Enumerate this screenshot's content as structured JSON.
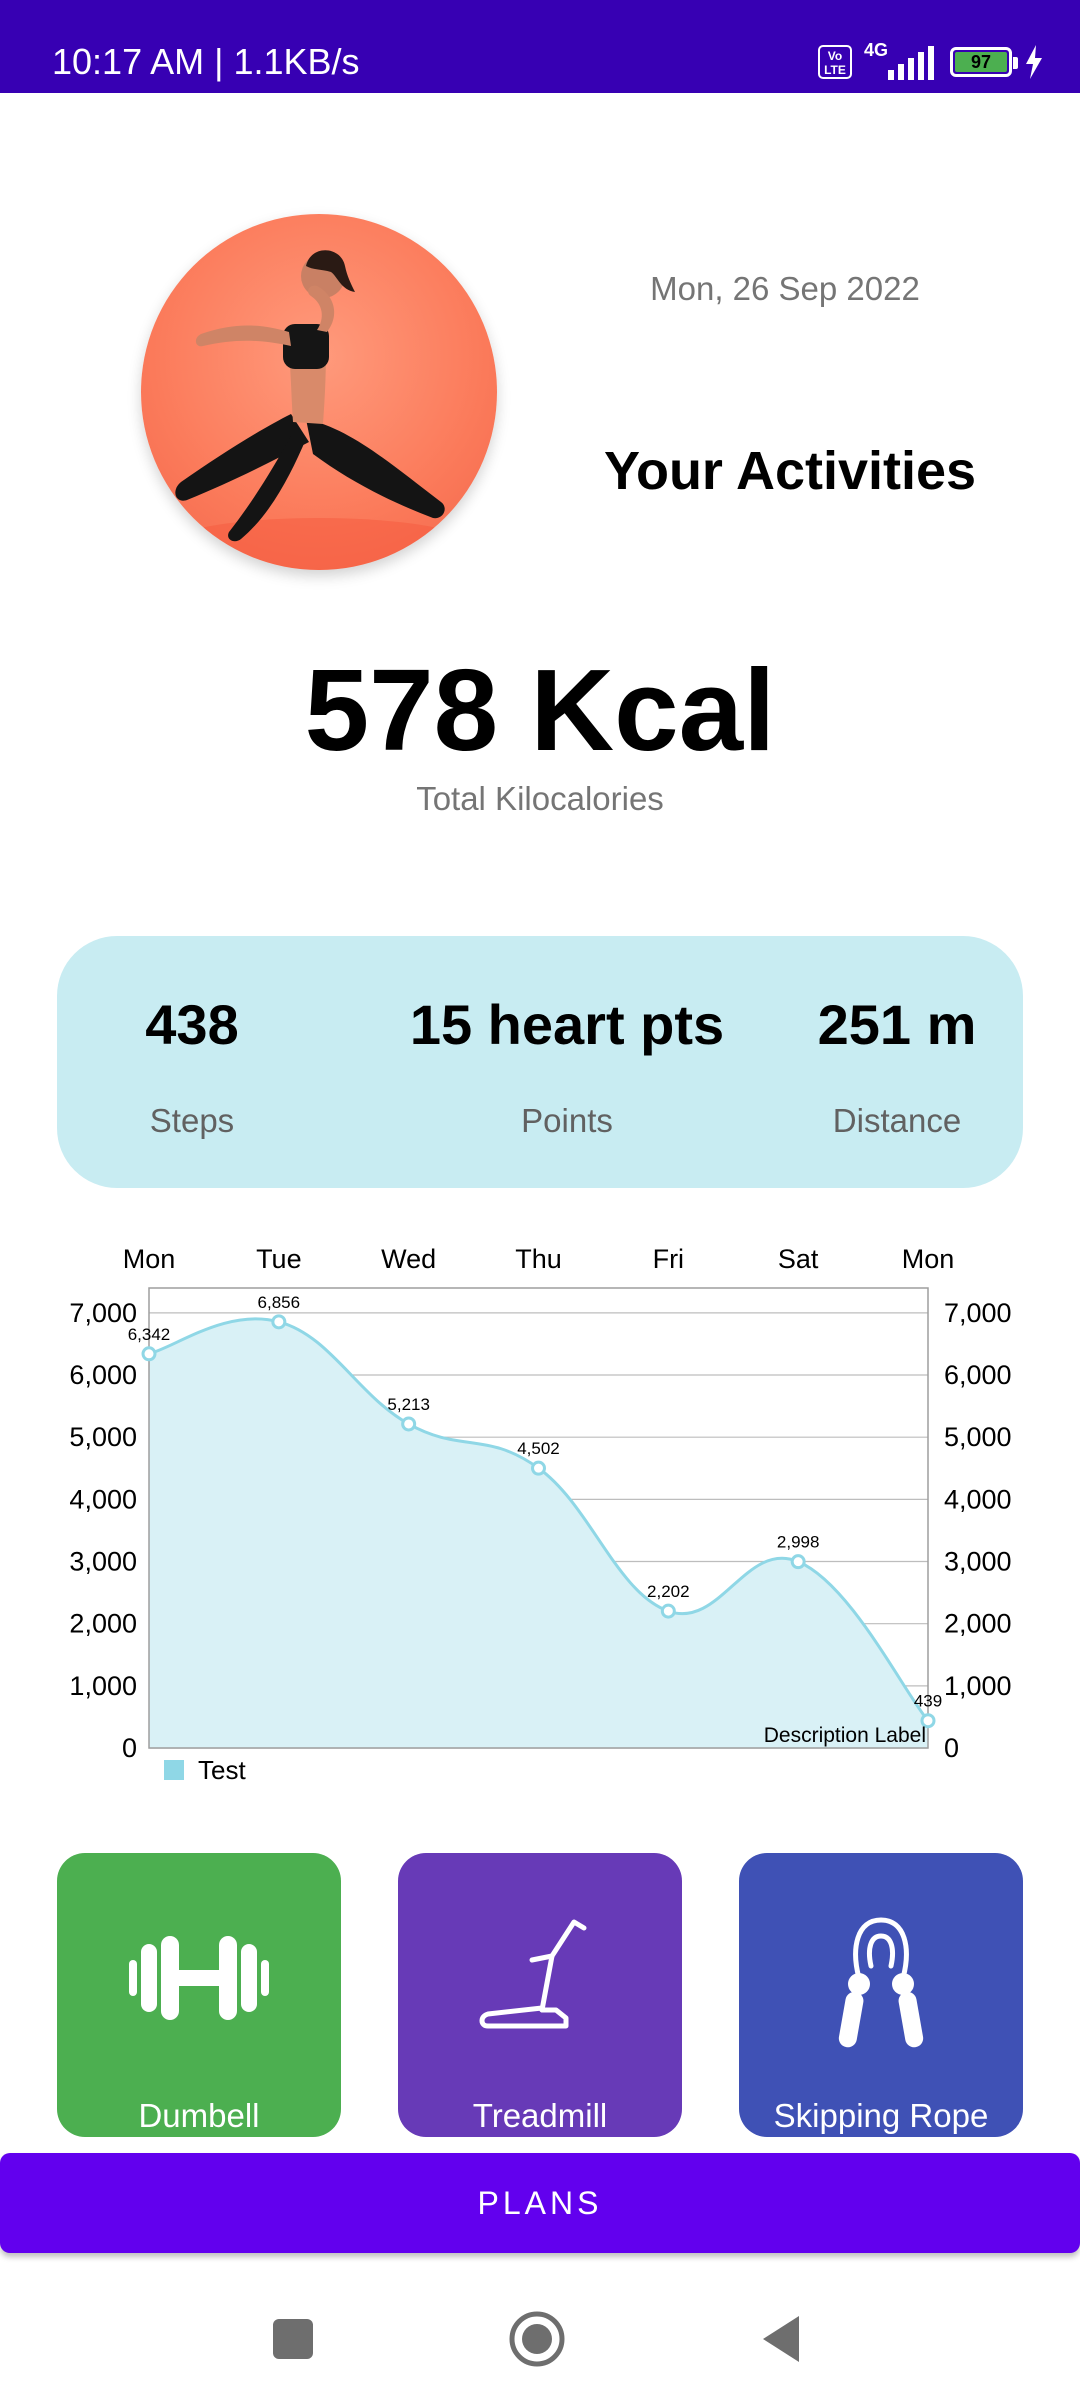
{
  "status_bar": {
    "time": "10:17 AM | 1.1KB/s",
    "volte_label": "Vo\nLTE",
    "network_label": "4G",
    "battery_level": "97"
  },
  "header": {
    "date": "Mon, 26 Sep 2022",
    "title": "Your Activities"
  },
  "summary": {
    "kcal_value": "578 Kcal",
    "kcal_label": "Total Kilocalories"
  },
  "stats": {
    "steps_value": "438",
    "steps_label": "Steps",
    "points_value": "15 heart pts",
    "points_label": "Points",
    "distance_value": "251 m",
    "distance_label": "Distance"
  },
  "chart_data": {
    "type": "line",
    "categories": [
      "Mon",
      "Tue",
      "Wed",
      "Thu",
      "Fri",
      "Sat",
      "Mon"
    ],
    "series": [
      {
        "name": "Test",
        "values": [
          6342,
          6856,
          5213,
          4502,
          2202,
          2998,
          439
        ],
        "color": "#8fd7e6"
      }
    ],
    "value_labels": [
      "6,342",
      "6,856",
      "5,213",
      "4,502",
      "2,202",
      "2,998",
      "439"
    ],
    "y_ticks": [
      0,
      1000,
      2000,
      3000,
      4000,
      5000,
      6000,
      7000
    ],
    "y_tick_labels": [
      "0",
      "1,000",
      "2,000",
      "3,000",
      "4,000",
      "5,000",
      "6,000",
      "7,000"
    ],
    "ylim": [
      0,
      7400
    ],
    "description": "Description Label",
    "legend_position": "bottom-left",
    "grid": true,
    "fill": "#d9f1f6"
  },
  "equipment": {
    "dumbell_label": "Dumbell",
    "treadmill_label": "Treadmill",
    "rope_label": "Skipping Rope",
    "dumbell_icon": "dumbell-icon",
    "treadmill_icon": "treadmill-icon",
    "rope_icon": "skipping-rope-icon"
  },
  "plans_button": {
    "label": "PLANS"
  },
  "colors": {
    "status_bar": "#3700b3",
    "accent": "#6200ee",
    "card": "#c8ecf2",
    "dumbell_tile": "#4caf50",
    "treadmill_tile": "#673ab7",
    "rope_tile": "#3f51b5"
  }
}
